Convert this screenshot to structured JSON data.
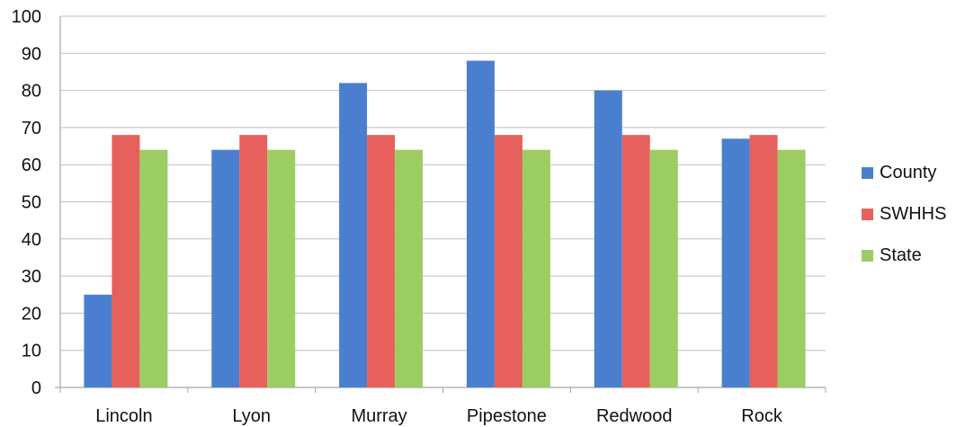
{
  "chart_data": {
    "type": "bar",
    "title": "",
    "xlabel": "",
    "ylabel": "",
    "categories": [
      "Lincoln",
      "Lyon",
      "Murray",
      "Pipestone",
      "Redwood",
      "Rock"
    ],
    "series": [
      {
        "name": "County",
        "color": "#4a7fd0",
        "values": [
          25,
          64,
          82,
          88,
          80,
          67
        ]
      },
      {
        "name": "SWHHS",
        "color": "#e6605c",
        "values": [
          68,
          68,
          68,
          68,
          68,
          68
        ]
      },
      {
        "name": "State",
        "color": "#9ccd63",
        "values": [
          64,
          64,
          64,
          64,
          64,
          64
        ]
      }
    ],
    "ylim": [
      0,
      100
    ],
    "yticks": [
      0,
      10,
      20,
      30,
      40,
      50,
      60,
      70,
      80,
      90,
      100
    ],
    "grid": true,
    "legend_position": "right"
  }
}
